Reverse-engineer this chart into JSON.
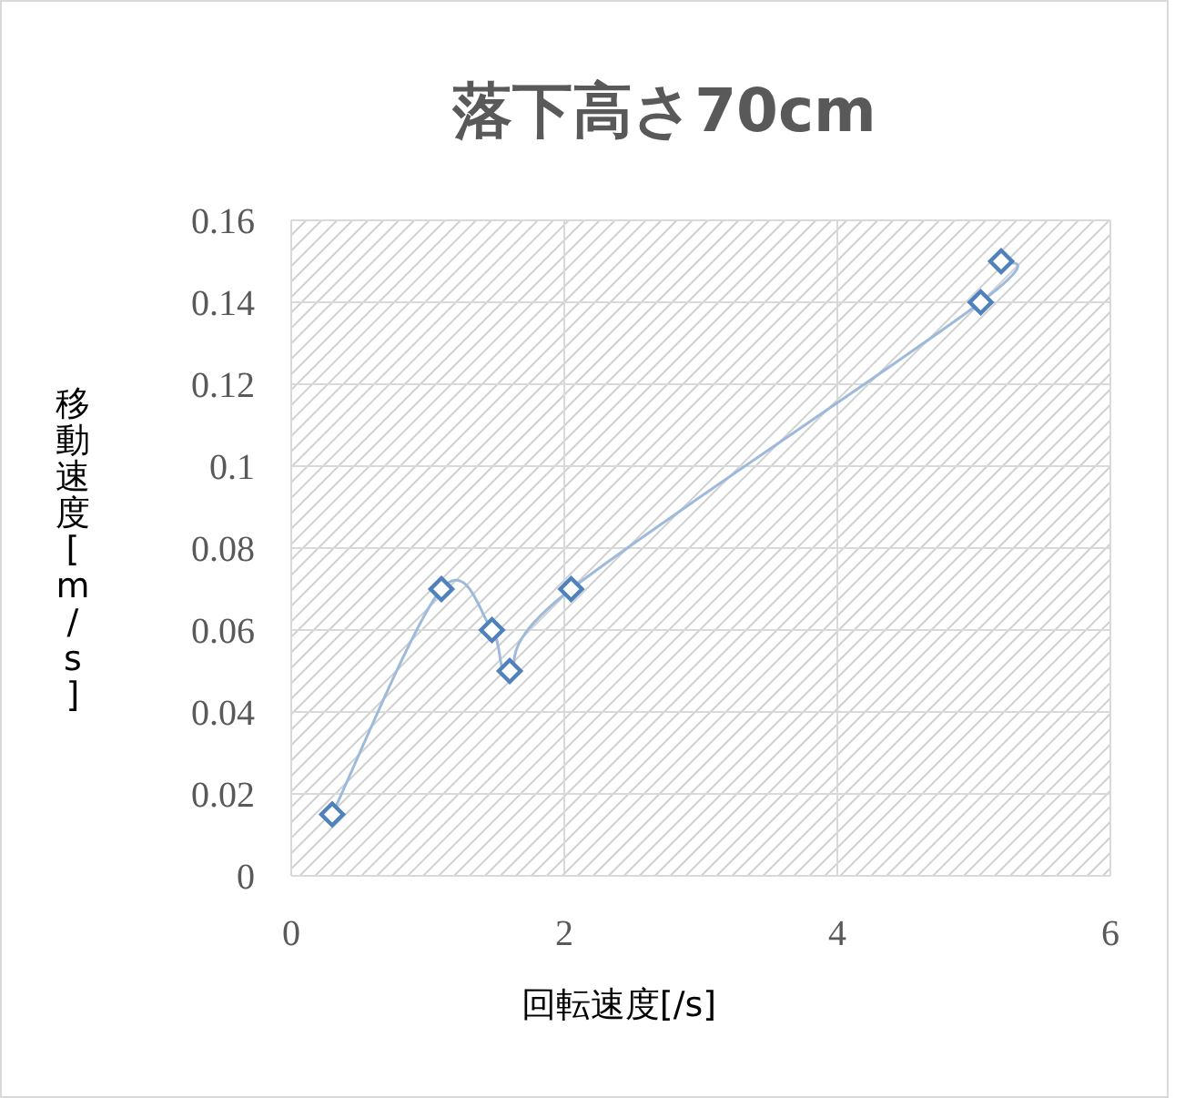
{
  "chart_data": {
    "type": "line",
    "title": "落下高さ70cm",
    "xlabel": "回転速度[/s]",
    "ylabel": "移動速度[m/s]",
    "x": [
      0.3,
      1.1,
      1.47,
      1.6,
      2.05,
      5.05,
      5.2
    ],
    "series": [
      {
        "color": "#4f81bd",
        "values": [
          0.015,
          0.07,
          0.06,
          0.05,
          0.07,
          0.14,
          0.15
        ]
      }
    ],
    "xlim": [
      0,
      6
    ],
    "xticks": [
      0,
      2,
      4,
      6
    ],
    "ylim": [
      0,
      0.16
    ],
    "yticks": [
      0,
      0.02,
      0.04,
      0.06,
      0.08,
      0.1,
      0.12,
      0.14,
      0.16
    ],
    "grid": true,
    "marker": "diamond",
    "line_style": "solid"
  }
}
